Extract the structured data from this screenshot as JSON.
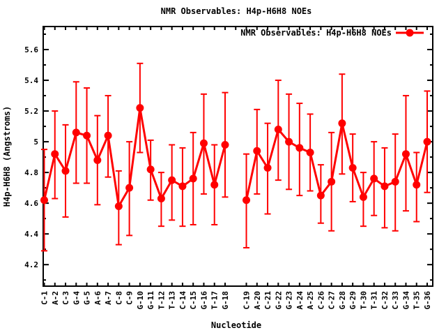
{
  "title": "NMR Observables: H4p-H6H8 NOEs",
  "colors": {
    "series": "#ff0000",
    "axis": "#000000",
    "background": "#ffffff"
  },
  "chart_data": {
    "type": "line",
    "title": "NMR Observables: H4p-H6H8 NOEs",
    "xlabel": "Nucleotide",
    "ylabel": "H4p-H6H8 (Angstroms)",
    "legend_entries": [
      "NMR Observables: H4p-H6H8 NOEs"
    ],
    "legend_position": "top-right-inside",
    "marker": "filled-circle",
    "error_bars": true,
    "grid": false,
    "ylim": [
      4.06,
      5.75
    ],
    "yticks": [
      4.2,
      4.4,
      4.6,
      4.8,
      5,
      5.2,
      5.4,
      5.6
    ],
    "ytick_labels": [
      "4.2",
      "4.4",
      "4.6",
      "4.8",
      "5",
      "5.2",
      "5.4",
      "5.6"
    ],
    "minor_ytick_step": 0.1,
    "gap_after": "G-18",
    "categories": [
      "C-1",
      "A-2",
      "C-3",
      "G-4",
      "G-5",
      "A-6",
      "A-7",
      "C-8",
      "C-9",
      "G-10",
      "G-11",
      "T-12",
      "T-13",
      "C-14",
      "C-15",
      "G-16",
      "T-17",
      "G-18",
      "C-19",
      "A-20",
      "C-21",
      "G-22",
      "G-23",
      "A-24",
      "A-25",
      "C-26",
      "C-27",
      "G-28",
      "G-29",
      "T-30",
      "T-31",
      "C-32",
      "C-33",
      "G-34",
      "T-35",
      "G-36"
    ],
    "series": [
      {
        "name": "NMR Observables: H4p-H6H8 NOEs",
        "color": "#ff0000",
        "values": [
          4.62,
          4.92,
          4.81,
          5.06,
          5.04,
          4.88,
          5.04,
          4.58,
          4.7,
          5.22,
          4.82,
          4.63,
          4.75,
          4.71,
          4.76,
          4.99,
          4.72,
          4.98,
          4.62,
          4.94,
          4.83,
          5.08,
          5.0,
          4.96,
          4.93,
          4.65,
          4.74,
          5.12,
          4.83,
          4.64,
          4.76,
          4.71,
          4.74,
          4.92,
          4.72,
          5.0
        ],
        "error_low": [
          4.29,
          4.63,
          4.51,
          4.73,
          4.73,
          4.59,
          4.77,
          4.33,
          4.39,
          4.93,
          4.62,
          4.45,
          4.49,
          4.45,
          4.46,
          4.66,
          4.46,
          4.64,
          4.31,
          4.66,
          4.53,
          4.75,
          4.69,
          4.65,
          4.68,
          4.47,
          4.42,
          4.79,
          4.61,
          4.45,
          4.52,
          4.44,
          4.42,
          4.55,
          4.48,
          4.67
        ],
        "error_high": [
          4.95,
          5.2,
          5.11,
          5.39,
          5.35,
          5.17,
          5.3,
          4.81,
          5.0,
          5.51,
          5.01,
          4.8,
          4.98,
          4.96,
          5.06,
          5.31,
          4.98,
          5.32,
          4.92,
          5.21,
          5.12,
          5.4,
          5.31,
          5.25,
          5.18,
          4.85,
          5.06,
          5.44,
          5.05,
          4.8,
          5.0,
          4.96,
          5.05,
          5.3,
          4.93,
          5.33
        ]
      }
    ]
  }
}
